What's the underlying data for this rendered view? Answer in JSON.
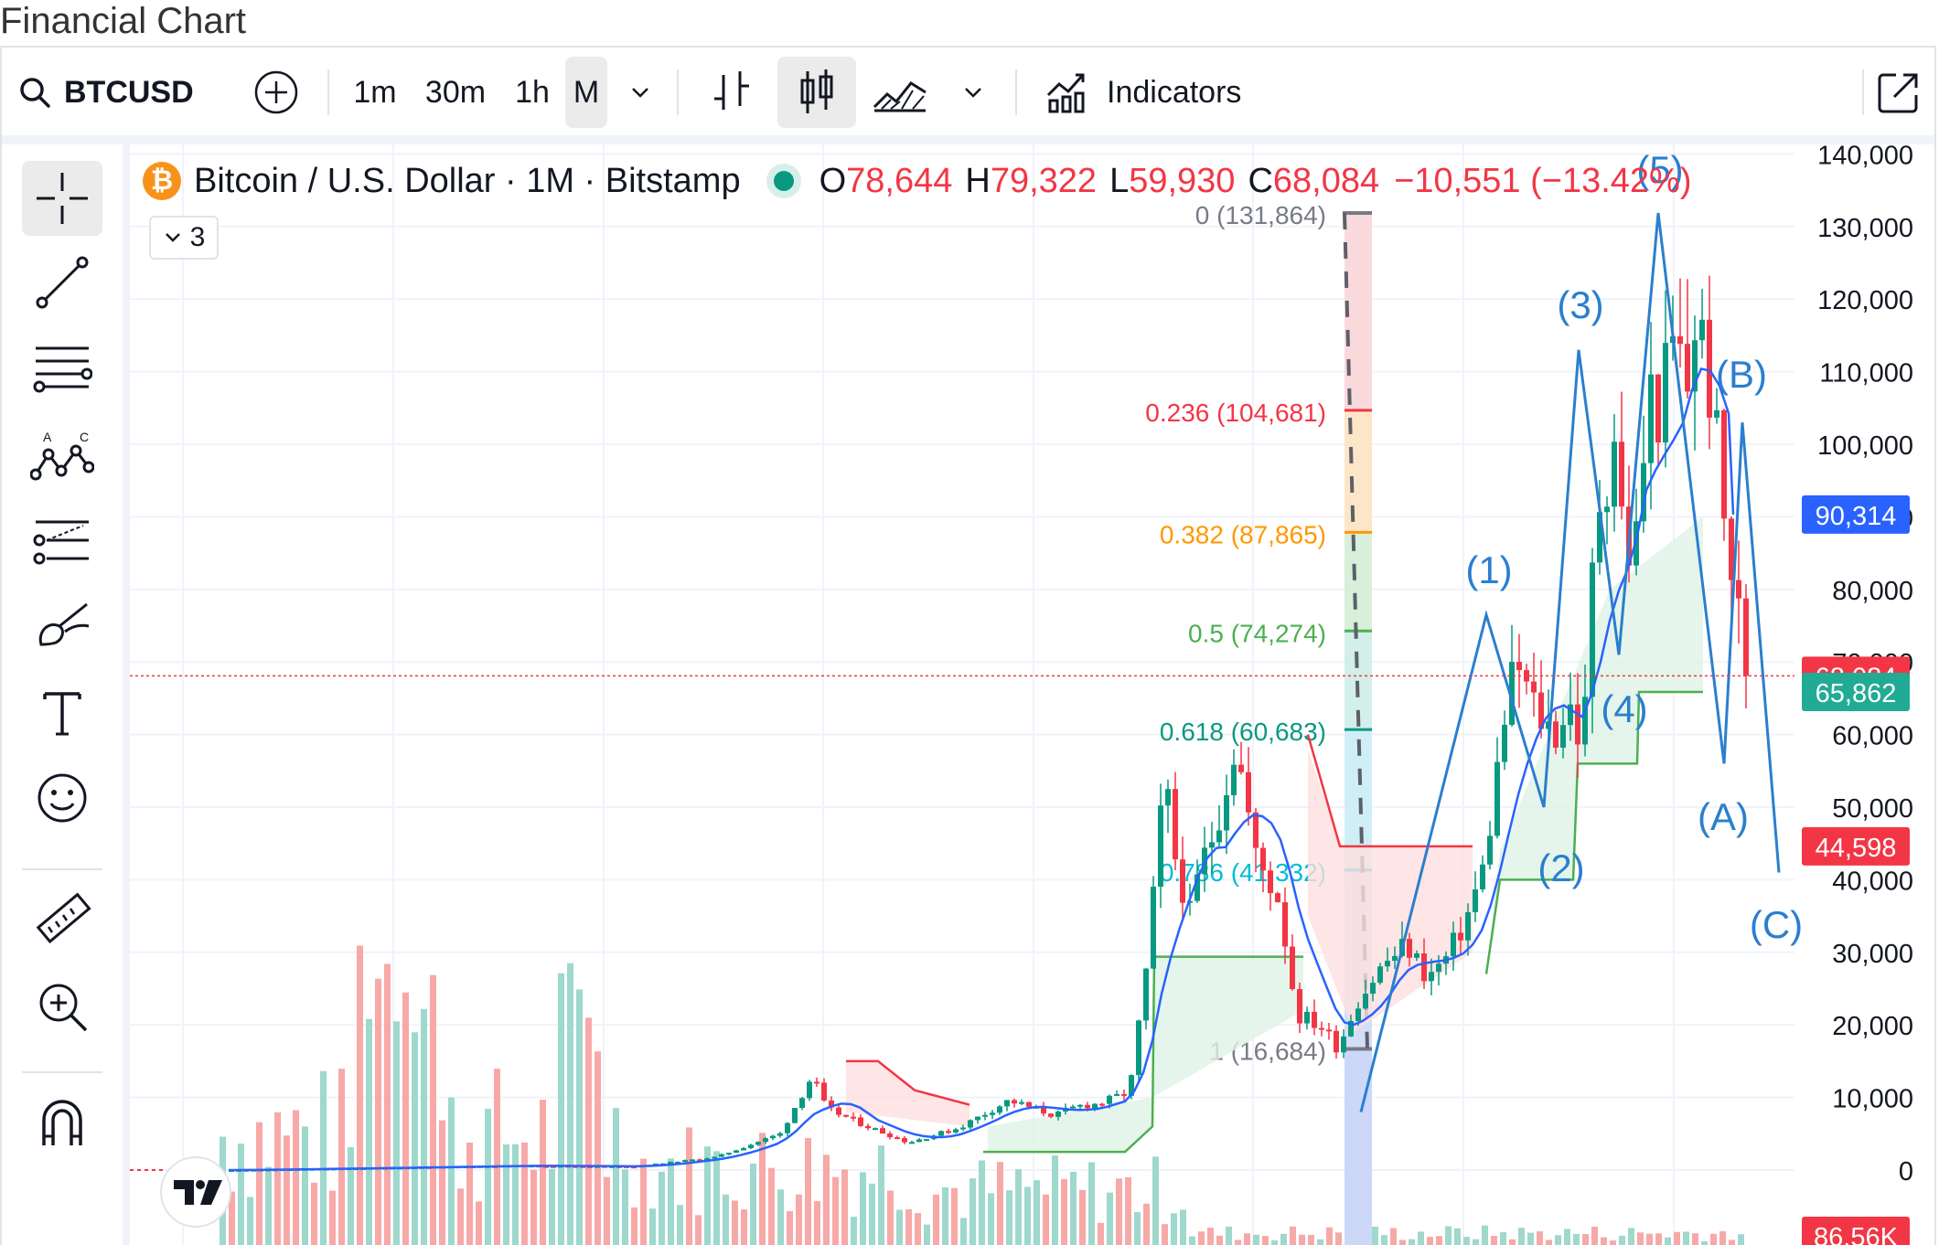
{
  "title": "Financial Chart",
  "toolbar": {
    "symbol": "BTCUSD",
    "intervals": [
      "1m",
      "30m",
      "1h",
      "M"
    ],
    "active_interval": "M",
    "indicators_label": "Indicators"
  },
  "legend": {
    "name": "Bitcoin / U.S. Dollar · 1M · Bitstamp",
    "logo": "₿",
    "o_label": "O",
    "o": "78,644",
    "h_label": "H",
    "h": "79,322",
    "l_label": "L",
    "l": "59,930",
    "c_label": "C",
    "c": "68,084",
    "change": "−10,551 (−13.42%)",
    "collapse_count": "3"
  },
  "price_axis": {
    "ticks": [
      "140,000",
      "130,000",
      "120,000",
      "110,000",
      "100,000",
      "90,000",
      "80,000",
      "70,000",
      "60,000",
      "50,000",
      "40,000",
      "30,000",
      "20,000",
      "10,000",
      "0"
    ],
    "tags": [
      {
        "label": "90,314",
        "color": "#2962ff",
        "value": 90314
      },
      {
        "label": "68,084",
        "color": "#f23645",
        "value": 68084
      },
      {
        "label": "65,862",
        "color": "#22ab94",
        "value": 65862
      },
      {
        "label": "44,598",
        "color": "#f23645",
        "value": 44598
      },
      {
        "label": "86.56K",
        "color": "#f23645",
        "value": null
      }
    ]
  },
  "fib": [
    {
      "label": "0 (131,864)",
      "value": 131864,
      "color": "#787b86"
    },
    {
      "label": "0.236 (104,681)",
      "value": 104681,
      "color": "#f23645"
    },
    {
      "label": "0.382 (87,865)",
      "value": 87865,
      "color": "#ff9800"
    },
    {
      "label": "0.5 (74,274)",
      "value": 74274,
      "color": "#4caf50"
    },
    {
      "label": "0.618 (60,683)",
      "value": 60683,
      "color": "#089981"
    },
    {
      "label": "0.786 (41,332)",
      "value": 41332,
      "color": "#00bcd4"
    },
    {
      "label": "1 (16,684)",
      "value": 16684,
      "color": "#787b86"
    }
  ],
  "waves": [
    "(1)",
    "(2)",
    "(3)",
    "(4)",
    "(5)",
    "(A)",
    "(B)",
    "(C)"
  ],
  "colors": {
    "up": "#089981",
    "down": "#f23645",
    "wave": "#2a7fce",
    "ma": "#2962ff"
  },
  "icons": [
    "search-icon",
    "plus-circle-icon",
    "chevron-down-icon",
    "bar-chart-icon",
    "candle-icon",
    "area-chart-icon",
    "indicators-icon",
    "fullscreen-icon",
    "crosshair-icon",
    "trend-line-icon",
    "fib-retracement-icon",
    "pattern-icon",
    "prediction-icon",
    "brush-icon",
    "text-icon",
    "emoji-icon",
    "ruler-icon",
    "zoom-in-icon",
    "magnet-icon"
  ]
}
